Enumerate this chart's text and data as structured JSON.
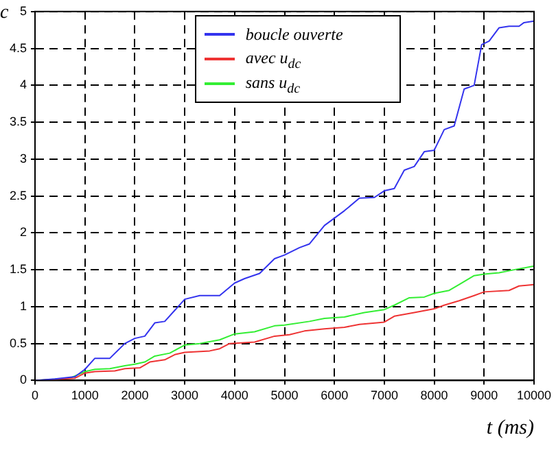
{
  "chart_data": {
    "type": "line",
    "xlabel": "t (ms)",
    "ylabel": "c",
    "xlim": [
      0,
      10000
    ],
    "xticks": [
      0,
      1000,
      2000,
      3000,
      4000,
      5000,
      6000,
      7000,
      8000,
      9000,
      10000
    ],
    "ylim": [
      0,
      5
    ],
    "yticks": [
      0,
      0.5,
      1,
      1.5,
      2,
      2.5,
      3,
      3.5,
      4,
      4.5,
      5
    ],
    "grid": true,
    "legend": "top",
    "line_style": "solid",
    "marker": "none",
    "series": [
      {
        "name": "boucle ouverte",
        "color": "#3333ee",
        "x": [
          0,
          400,
          800,
          1000,
          1200,
          1500,
          1800,
          2000,
          2200,
          2400,
          2600,
          2800,
          3000,
          3300,
          3700,
          4000,
          4200,
          4500,
          4800,
          5000,
          5300,
          5500,
          5800,
          6000,
          6200,
          6500,
          6800,
          7000,
          7200,
          7400,
          7600,
          7800,
          8000,
          8200,
          8400,
          8600,
          8800,
          8950,
          9100,
          9300,
          9500,
          9700,
          9800,
          10000
        ],
        "values": [
          0,
          0.02,
          0.05,
          0.15,
          0.3,
          0.3,
          0.5,
          0.57,
          0.6,
          0.78,
          0.8,
          0.95,
          1.1,
          1.15,
          1.15,
          1.32,
          1.38,
          1.45,
          1.65,
          1.7,
          1.8,
          1.85,
          2.1,
          2.2,
          2.3,
          2.47,
          2.48,
          2.57,
          2.6,
          2.85,
          2.9,
          3.1,
          3.12,
          3.4,
          3.45,
          3.95,
          4,
          4.55,
          4.6,
          4.78,
          4.8,
          4.8,
          4.85,
          4.87
        ]
      },
      {
        "name": "avec u$_{dc}$",
        "color": "#ee3333",
        "x": [
          0,
          800,
          1000,
          1200,
          1600,
          1800,
          2100,
          2300,
          2600,
          2800,
          3000,
          3500,
          3700,
          3900,
          4400,
          4800,
          5100,
          5400,
          5800,
          6200,
          6500,
          7000,
          7200,
          7600,
          8000,
          8200,
          8500,
          8800,
          9000,
          9500,
          9700,
          10000
        ],
        "values": [
          0,
          0.03,
          0.1,
          0.12,
          0.13,
          0.16,
          0.17,
          0.25,
          0.28,
          0.35,
          0.38,
          0.4,
          0.43,
          0.5,
          0.52,
          0.6,
          0.62,
          0.67,
          0.7,
          0.72,
          0.76,
          0.79,
          0.87,
          0.92,
          0.97,
          1.02,
          1.08,
          1.15,
          1.2,
          1.22,
          1.28,
          1.3
        ]
      },
      {
        "name": "sans u$_{dc}$",
        "color": "#33ee33",
        "x": [
          0,
          700,
          1000,
          1200,
          1500,
          1800,
          2000,
          2200,
          2400,
          2700,
          3000,
          3300,
          3700,
          4000,
          4400,
          4800,
          5000,
          5500,
          5800,
          6200,
          6600,
          7000,
          7200,
          7500,
          7800,
          8000,
          8300,
          8500,
          8800,
          9000,
          9300,
          9600,
          10000
        ],
        "values": [
          0,
          0.03,
          0.12,
          0.15,
          0.16,
          0.2,
          0.22,
          0.25,
          0.33,
          0.37,
          0.48,
          0.5,
          0.55,
          0.63,
          0.66,
          0.74,
          0.75,
          0.8,
          0.84,
          0.86,
          0.92,
          0.96,
          1.02,
          1.12,
          1.13,
          1.18,
          1.22,
          1.3,
          1.42,
          1.44,
          1.46,
          1.5,
          1.55
        ]
      }
    ]
  }
}
